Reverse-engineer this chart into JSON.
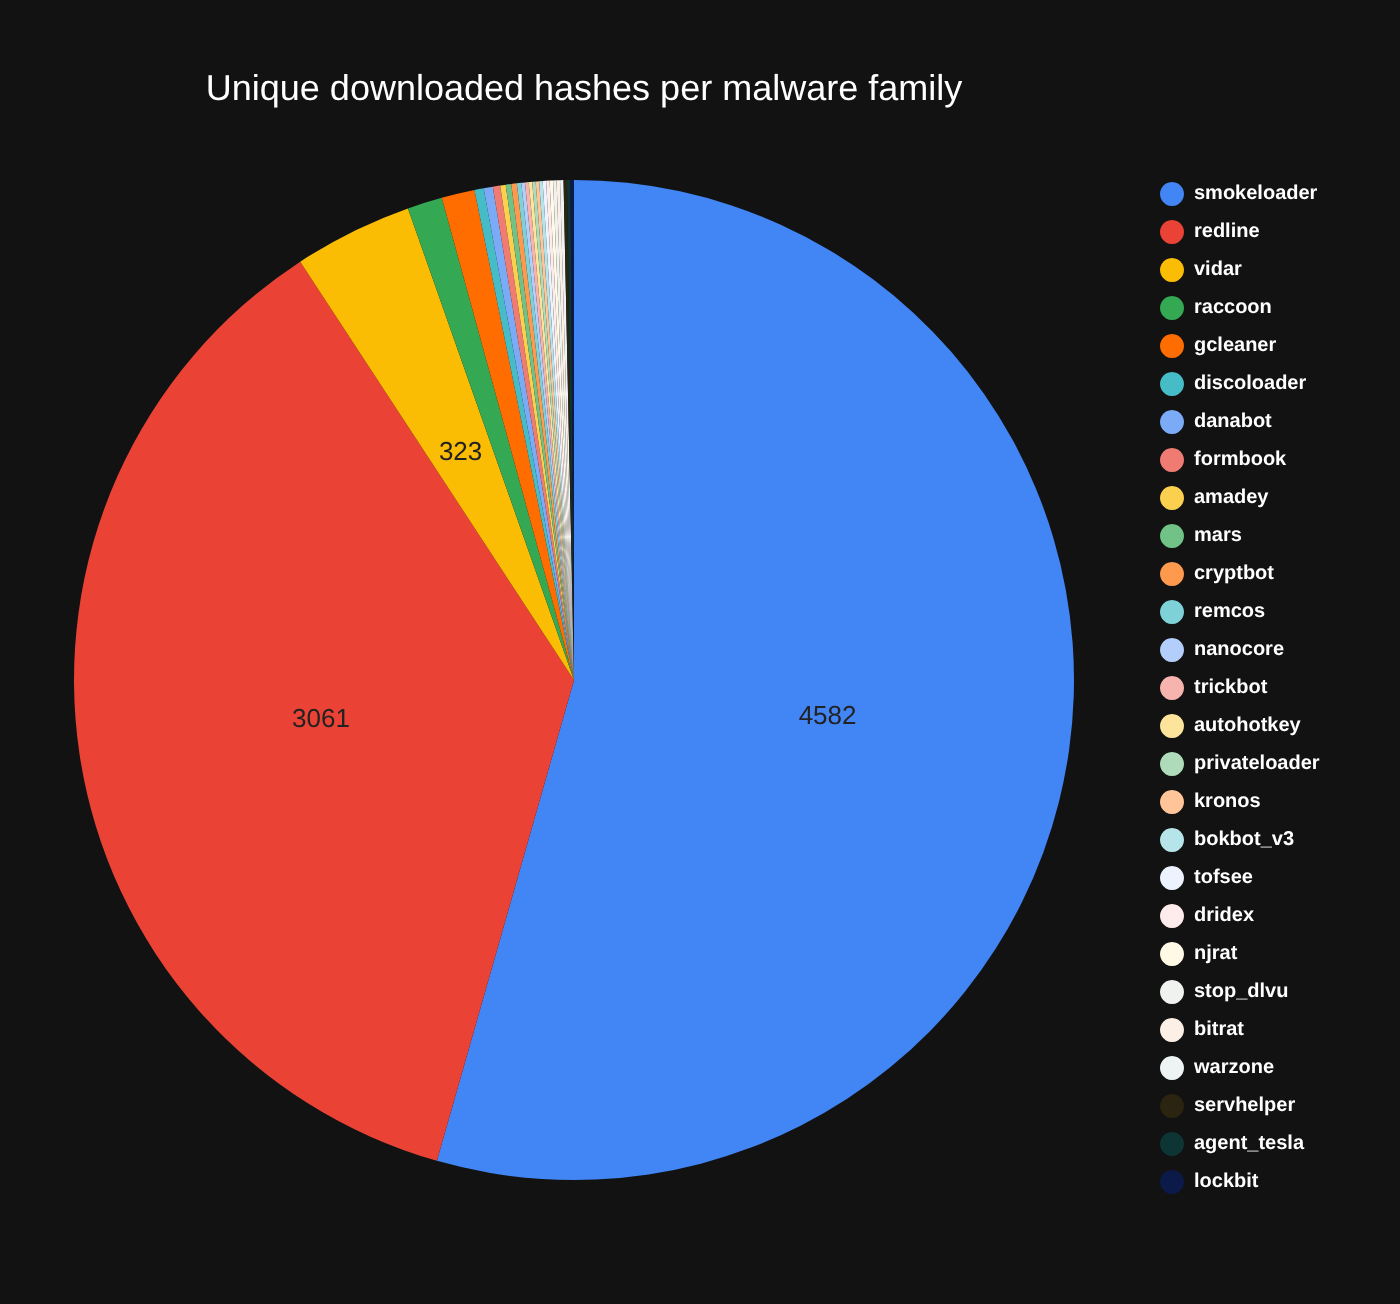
{
  "chart_data": {
    "type": "pie",
    "title": "Unique downloaded hashes per malware family",
    "categories": [
      "smokeloader",
      "redline",
      "vidar",
      "raccoon",
      "gcleaner",
      "discoloader",
      "danabot",
      "formbook",
      "amadey",
      "mars",
      "cryptbot",
      "remcos",
      "nanocore",
      "trickbot",
      "autohotkey",
      "privateloader",
      "kronos",
      "bokbot_v3",
      "tofsee",
      "dridex",
      "njrat",
      "stop_dlvu",
      "bitrat",
      "warzone",
      "servhelper",
      "agent_tesla",
      "lockbit"
    ],
    "values": [
      4582,
      3061,
      323,
      95,
      90,
      25,
      25,
      20,
      15,
      15,
      15,
      12,
      10,
      10,
      8,
      8,
      6,
      5,
      4,
      4,
      3,
      3,
      2,
      2,
      1,
      1,
      1
    ],
    "value_labels": [
      "4582",
      "3061",
      "323",
      null,
      null,
      null,
      null,
      null,
      null,
      null,
      null,
      null,
      null,
      null,
      null,
      null,
      null,
      null,
      null,
      null,
      null,
      null,
      null,
      null,
      null,
      null,
      null
    ],
    "colors": [
      "#4285f4",
      "#ea4335",
      "#fbbc04",
      "#34a853",
      "#ff6d01",
      "#46bdc6",
      "#7baaf7",
      "#f07b72",
      "#fcd04f",
      "#71c287",
      "#ff994d",
      "#7ed1d7",
      "#b3cefb",
      "#f7b4ae",
      "#fde49b",
      "#aedcba",
      "#ffc599",
      "#b5e5e8",
      "#ecf3fe",
      "#fdeceb",
      "#fff9e6",
      "#f0f2ef",
      "#fcefe6",
      "#eef4f4",
      "#2a2410",
      "#0e3535",
      "#0c1a4a"
    ],
    "legend": "right"
  }
}
